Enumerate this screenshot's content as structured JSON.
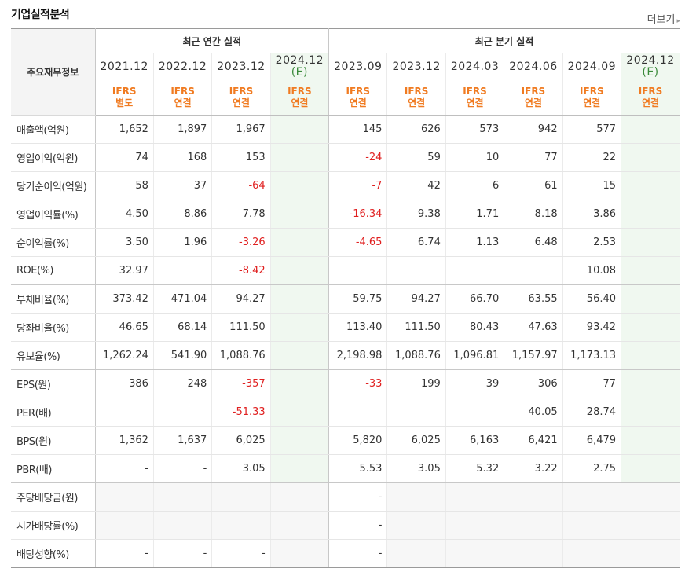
{
  "header": {
    "title": "기업실적분석",
    "more_label": "더보기"
  },
  "table": {
    "row_header_label": "주요재무정보",
    "group_annual": "최근 연간 실적",
    "group_quarter": "최근 분기 실적",
    "periods": [
      "2021.12",
      "2022.12",
      "2023.12",
      "2024.12",
      "2023.09",
      "2023.12",
      "2024.03",
      "2024.06",
      "2024.09",
      "2024.12"
    ],
    "estimate_mark": "(E)",
    "standards": [
      [
        "IFRS",
        "별도"
      ],
      [
        "IFRS",
        "연결"
      ],
      [
        "IFRS",
        "연결"
      ],
      [
        "IFRS",
        "연결"
      ],
      [
        "IFRS",
        "연결"
      ],
      [
        "IFRS",
        "연결"
      ],
      [
        "IFRS",
        "연결"
      ],
      [
        "IFRS",
        "연결"
      ],
      [
        "IFRS",
        "연결"
      ],
      [
        "IFRS",
        "연결"
      ]
    ],
    "rows": [
      {
        "label": "매출액(억원)",
        "values": [
          "1,652",
          "1,897",
          "1,967",
          "",
          "145",
          "626",
          "573",
          "942",
          "577",
          ""
        ]
      },
      {
        "label": "영업이익(억원)",
        "values": [
          "74",
          "168",
          "153",
          "",
          "-24",
          "59",
          "10",
          "77",
          "22",
          ""
        ]
      },
      {
        "label": "당기순이익(억원)",
        "values": [
          "58",
          "37",
          "-64",
          "",
          "-7",
          "42",
          "6",
          "61",
          "15",
          ""
        ]
      },
      {
        "label": "영업이익률(%)",
        "values": [
          "4.50",
          "8.86",
          "7.78",
          "",
          "-16.34",
          "9.38",
          "1.71",
          "8.18",
          "3.86",
          ""
        ]
      },
      {
        "label": "순이익률(%)",
        "values": [
          "3.50",
          "1.96",
          "-3.26",
          "",
          "-4.65",
          "6.74",
          "1.13",
          "6.48",
          "2.53",
          ""
        ]
      },
      {
        "label": "ROE(%)",
        "values": [
          "32.97",
          "",
          "-8.42",
          "",
          "",
          "",
          "",
          "",
          "10.08",
          ""
        ]
      },
      {
        "label": "부채비율(%)",
        "values": [
          "373.42",
          "471.04",
          "94.27",
          "",
          "59.75",
          "94.27",
          "66.70",
          "63.55",
          "56.40",
          ""
        ]
      },
      {
        "label": "당좌비율(%)",
        "values": [
          "46.65",
          "68.14",
          "111.50",
          "",
          "113.40",
          "111.50",
          "80.43",
          "47.63",
          "93.42",
          ""
        ]
      },
      {
        "label": "유보율(%)",
        "values": [
          "1,262.24",
          "541.90",
          "1,088.76",
          "",
          "2,198.98",
          "1,088.76",
          "1,096.81",
          "1,157.97",
          "1,173.13",
          ""
        ]
      },
      {
        "label": "EPS(원)",
        "values": [
          "386",
          "248",
          "-357",
          "",
          "-33",
          "199",
          "39",
          "306",
          "77",
          ""
        ]
      },
      {
        "label": "PER(배)",
        "values": [
          "",
          "",
          "-51.33",
          "",
          "",
          "",
          "",
          "40.05",
          "28.74",
          ""
        ]
      },
      {
        "label": "BPS(원)",
        "values": [
          "1,362",
          "1,637",
          "6,025",
          "",
          "5,820",
          "6,025",
          "6,163",
          "6,421",
          "6,479",
          ""
        ]
      },
      {
        "label": "PBR(배)",
        "values": [
          "-",
          "-",
          "3.05",
          "",
          "5.53",
          "3.05",
          "5.32",
          "3.22",
          "2.75",
          ""
        ]
      },
      {
        "label": "주당배당금(원)",
        "values": [
          "",
          "",
          "",
          "",
          "-",
          "",
          "",
          "",
          "",
          ""
        ]
      },
      {
        "label": "시가배당률(%)",
        "values": [
          "",
          "",
          "",
          "",
          "-",
          "",
          "",
          "",
          "",
          ""
        ]
      },
      {
        "label": "배당성향(%)",
        "values": [
          "-",
          "-",
          "-",
          "",
          "-",
          "",
          "",
          "",
          "",
          ""
        ]
      }
    ]
  }
}
